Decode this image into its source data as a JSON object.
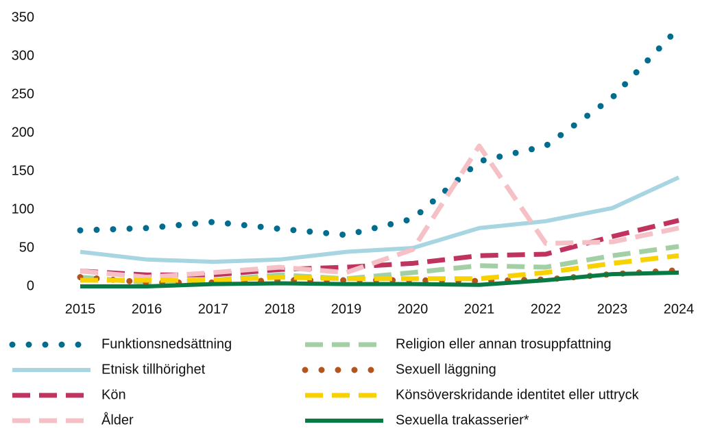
{
  "chart_data": {
    "type": "line",
    "categories": [
      "2015",
      "2016",
      "2017",
      "2018",
      "2019",
      "2020",
      "2021",
      "2022",
      "2023",
      "2024"
    ],
    "ylim": [
      0,
      350
    ],
    "yticks": [
      0,
      50,
      100,
      150,
      200,
      250,
      300,
      350
    ],
    "grid": false,
    "series": [
      {
        "name": "Funktionsnedsättning",
        "color": "#006d8f",
        "style": "dotted",
        "values": [
          73,
          76,
          84,
          75,
          67,
          88,
          163,
          183,
          246,
          337
        ]
      },
      {
        "name": "Etnisk tillhörighet",
        "color": "#a8d5e2",
        "style": "solid",
        "values": [
          45,
          35,
          32,
          35,
          45,
          50,
          76,
          85,
          102,
          142
        ]
      },
      {
        "name": "Kön",
        "color": "#c0335f",
        "style": "dashed",
        "values": [
          20,
          15,
          15,
          22,
          25,
          30,
          40,
          42,
          65,
          86
        ]
      },
      {
        "name": "Ålder",
        "color": "#f5c0c6",
        "style": "dashed",
        "values": [
          20,
          12,
          18,
          25,
          18,
          48,
          183,
          56,
          58,
          76
        ]
      },
      {
        "name": "Religion eller annan trosuppfattning",
        "color": "#a3cfa5",
        "style": "dashed",
        "values": [
          12,
          5,
          8,
          15,
          10,
          18,
          27,
          25,
          40,
          52
        ]
      },
      {
        "name": "Sexuell läggning",
        "color": "#b5541c",
        "style": "dotted",
        "values": [
          12,
          5,
          5,
          8,
          8,
          8,
          7,
          9,
          16,
          21
        ]
      },
      {
        "name": "Könsöverskridande identitet eller uttryck",
        "color": "#f7d100",
        "style": "dashed",
        "values": [
          8,
          8,
          8,
          12,
          10,
          10,
          10,
          18,
          30,
          40
        ]
      },
      {
        "name": "Sexuella trakasserier*",
        "color": "#0a7a43",
        "style": "solid",
        "values": [
          0,
          0,
          3,
          4,
          3,
          3,
          2,
          8,
          16,
          18
        ]
      }
    ]
  }
}
